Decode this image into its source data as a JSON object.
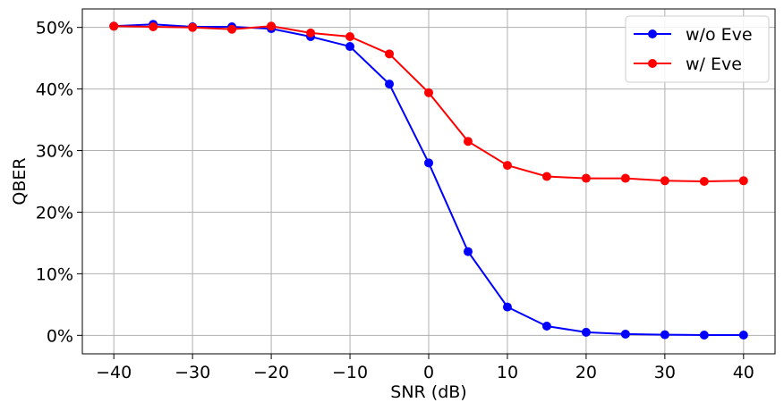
{
  "chart_data": {
    "type": "line",
    "title": "",
    "xlabel": "SNR (dB)",
    "ylabel": "QBER",
    "xlim": [
      -44,
      44
    ],
    "ylim": [
      -0.03,
      0.53
    ],
    "xticks": [
      -40,
      -30,
      -20,
      -10,
      0,
      10,
      20,
      30,
      40
    ],
    "xtick_labels": [
      "−40",
      "−30",
      "−20",
      "−10",
      "0",
      "10",
      "20",
      "30",
      "40"
    ],
    "yticks": [
      0,
      0.1,
      0.2,
      0.3,
      0.4,
      0.5
    ],
    "ytick_labels": [
      "0%",
      "10%",
      "20%",
      "30%",
      "40%",
      "50%"
    ],
    "grid": true,
    "legend_position": "top-right",
    "x": [
      -40,
      -35,
      -30,
      -25,
      -20,
      -15,
      -10,
      -5,
      0,
      5,
      10,
      15,
      20,
      25,
      30,
      35,
      40
    ],
    "series": [
      {
        "name": "w/o Eve",
        "color": "#0000ff",
        "marker": "circle",
        "values": [
          0.502,
          0.505,
          0.501,
          0.501,
          0.498,
          0.485,
          0.469,
          0.408,
          0.28,
          0.136,
          0.046,
          0.015,
          0.005,
          0.002,
          0.001,
          0.0005,
          0.0005
        ]
      },
      {
        "name": "w/ Eve",
        "color": "#ff0000",
        "marker": "circle",
        "values": [
          0.502,
          0.501,
          0.5,
          0.497,
          0.502,
          0.491,
          0.485,
          0.457,
          0.394,
          0.315,
          0.276,
          0.258,
          0.255,
          0.255,
          0.251,
          0.25,
          0.251
        ]
      }
    ]
  }
}
